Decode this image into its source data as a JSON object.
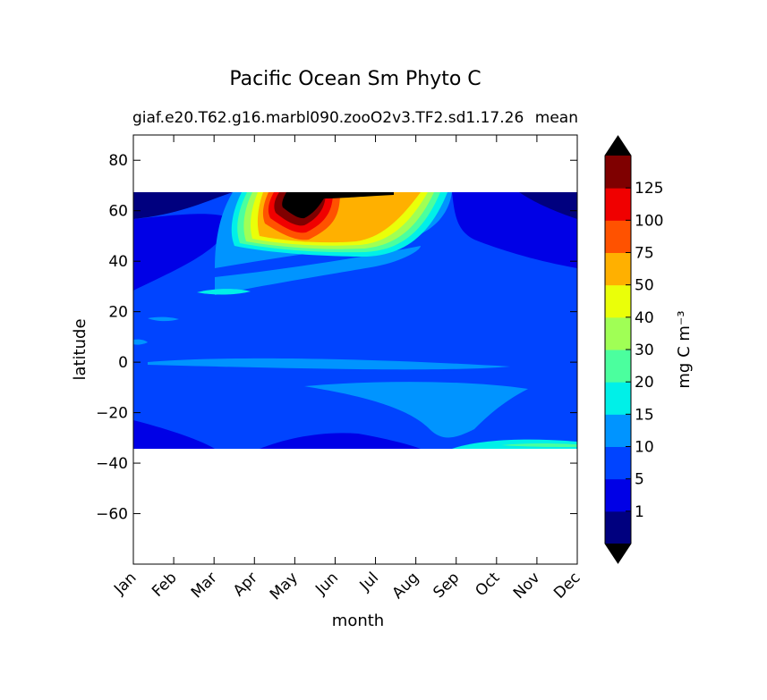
{
  "chart_data": {
    "type": "heatmap",
    "title": "Pacific Ocean Sm Phyto C",
    "subtitle_left": "giaf.e20.T62.g16.marbl090.zooO2v3.TF2.sd1.17.26",
    "subtitle_right": "mean",
    "xlabel": "month",
    "ylabel": "latitude",
    "x_ticks": [
      "Jan",
      "Feb",
      "Mar",
      "Apr",
      "May",
      "Jun",
      "Jul",
      "Aug",
      "Sep",
      "Oct",
      "Nov",
      "Dec"
    ],
    "y_ticks": [
      80,
      60,
      40,
      20,
      0,
      -20,
      -40,
      -60
    ],
    "y_tick_labels": [
      "80",
      "60",
      "40",
      "20",
      "0",
      "−20",
      "−40",
      "−60"
    ],
    "ylim": [
      -80,
      90
    ],
    "xlim": [
      0,
      11
    ],
    "data_lat_range": [
      -34,
      67
    ],
    "colorbar": {
      "label": "mg C m⁻³",
      "levels": [
        0,
        1,
        5,
        10,
        15,
        20,
        30,
        40,
        50,
        75,
        100,
        125,
        145
      ],
      "tick_labels": [
        "1",
        "5",
        "10",
        "15",
        "20",
        "30",
        "40",
        "50",
        "75",
        "100",
        "125"
      ],
      "colors": [
        "#00007f",
        "#0000e6",
        "#0044ff",
        "#0094ff",
        "#00f0e8",
        "#4bff9e",
        "#a0ff55",
        "#eaff09",
        "#ffb000",
        "#ff5200",
        "#f00000",
        "#7f0000"
      ],
      "extend_colors": {
        "below": "#000000",
        "above": "#000000"
      }
    },
    "region_colors": {
      "background_level": "#0044ff",
      "bloom_peak": "#000000"
    }
  }
}
